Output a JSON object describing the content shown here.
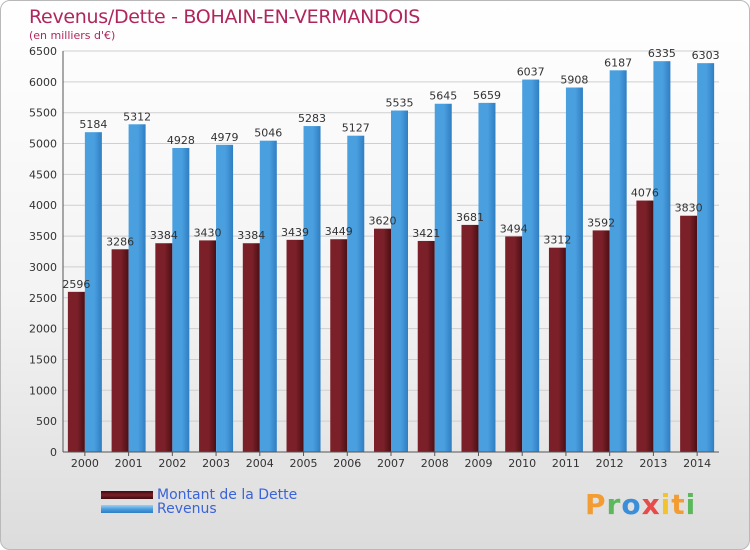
{
  "title": "Revenus/Dette - BOHAIN-EN-VERMANDOIS",
  "subtitle": "(en milliers d'€)",
  "brand_logo": "Proxiti",
  "colors": {
    "title": "#b0265c",
    "debt": "#7b2028",
    "revenue": "#4a9fdf",
    "grid": "#cfcfcf",
    "legend_text": "#3a63d8"
  },
  "chart_data": {
    "type": "bar",
    "title": "Revenus/Dette - BOHAIN-EN-VERMANDOIS",
    "subtitle": "(en milliers d'€)",
    "categories": [
      "2000",
      "2001",
      "2002",
      "2003",
      "2004",
      "2005",
      "2006",
      "2007",
      "2008",
      "2009",
      "2010",
      "2011",
      "2012",
      "2013",
      "2014"
    ],
    "series": [
      {
        "name": "Montant de la Dette",
        "color": "#7b2028",
        "values": [
          2596,
          3286,
          3384,
          3430,
          3384,
          3439,
          3449,
          3620,
          3421,
          3681,
          3494,
          3312,
          3592,
          4076,
          3830
        ],
        "labels": [
          "2596",
          "3286",
          "3384",
          "3430",
          "3384",
          "3439",
          "3449",
          "3620",
          "3421",
          "3681",
          "3494",
          "3312",
          "3592",
          "4076",
          "3830"
        ]
      },
      {
        "name": "Revenus",
        "color": "#4a9fdf",
        "values": [
          5184,
          5312,
          4928,
          4979,
          5046,
          5283,
          5127,
          5535,
          5645,
          5659,
          6037,
          5908,
          6187,
          6335,
          6303
        ],
        "labels": [
          "5184",
          "5312",
          "4928",
          "4979",
          "5046",
          "5283",
          "5127",
          "5535",
          "5645",
          "5659",
          "6037",
          "5908",
          "6187",
          "6335",
          "6303"
        ]
      }
    ],
    "ylim": [
      0,
      6500
    ],
    "yticks": [
      "0",
      "500",
      "1000",
      "1500",
      "2000",
      "2500",
      "3000",
      "3500",
      "4000",
      "4500",
      "5000",
      "5500",
      "6000",
      "6500"
    ],
    "grid": true,
    "legend_position": "bottom-left"
  }
}
